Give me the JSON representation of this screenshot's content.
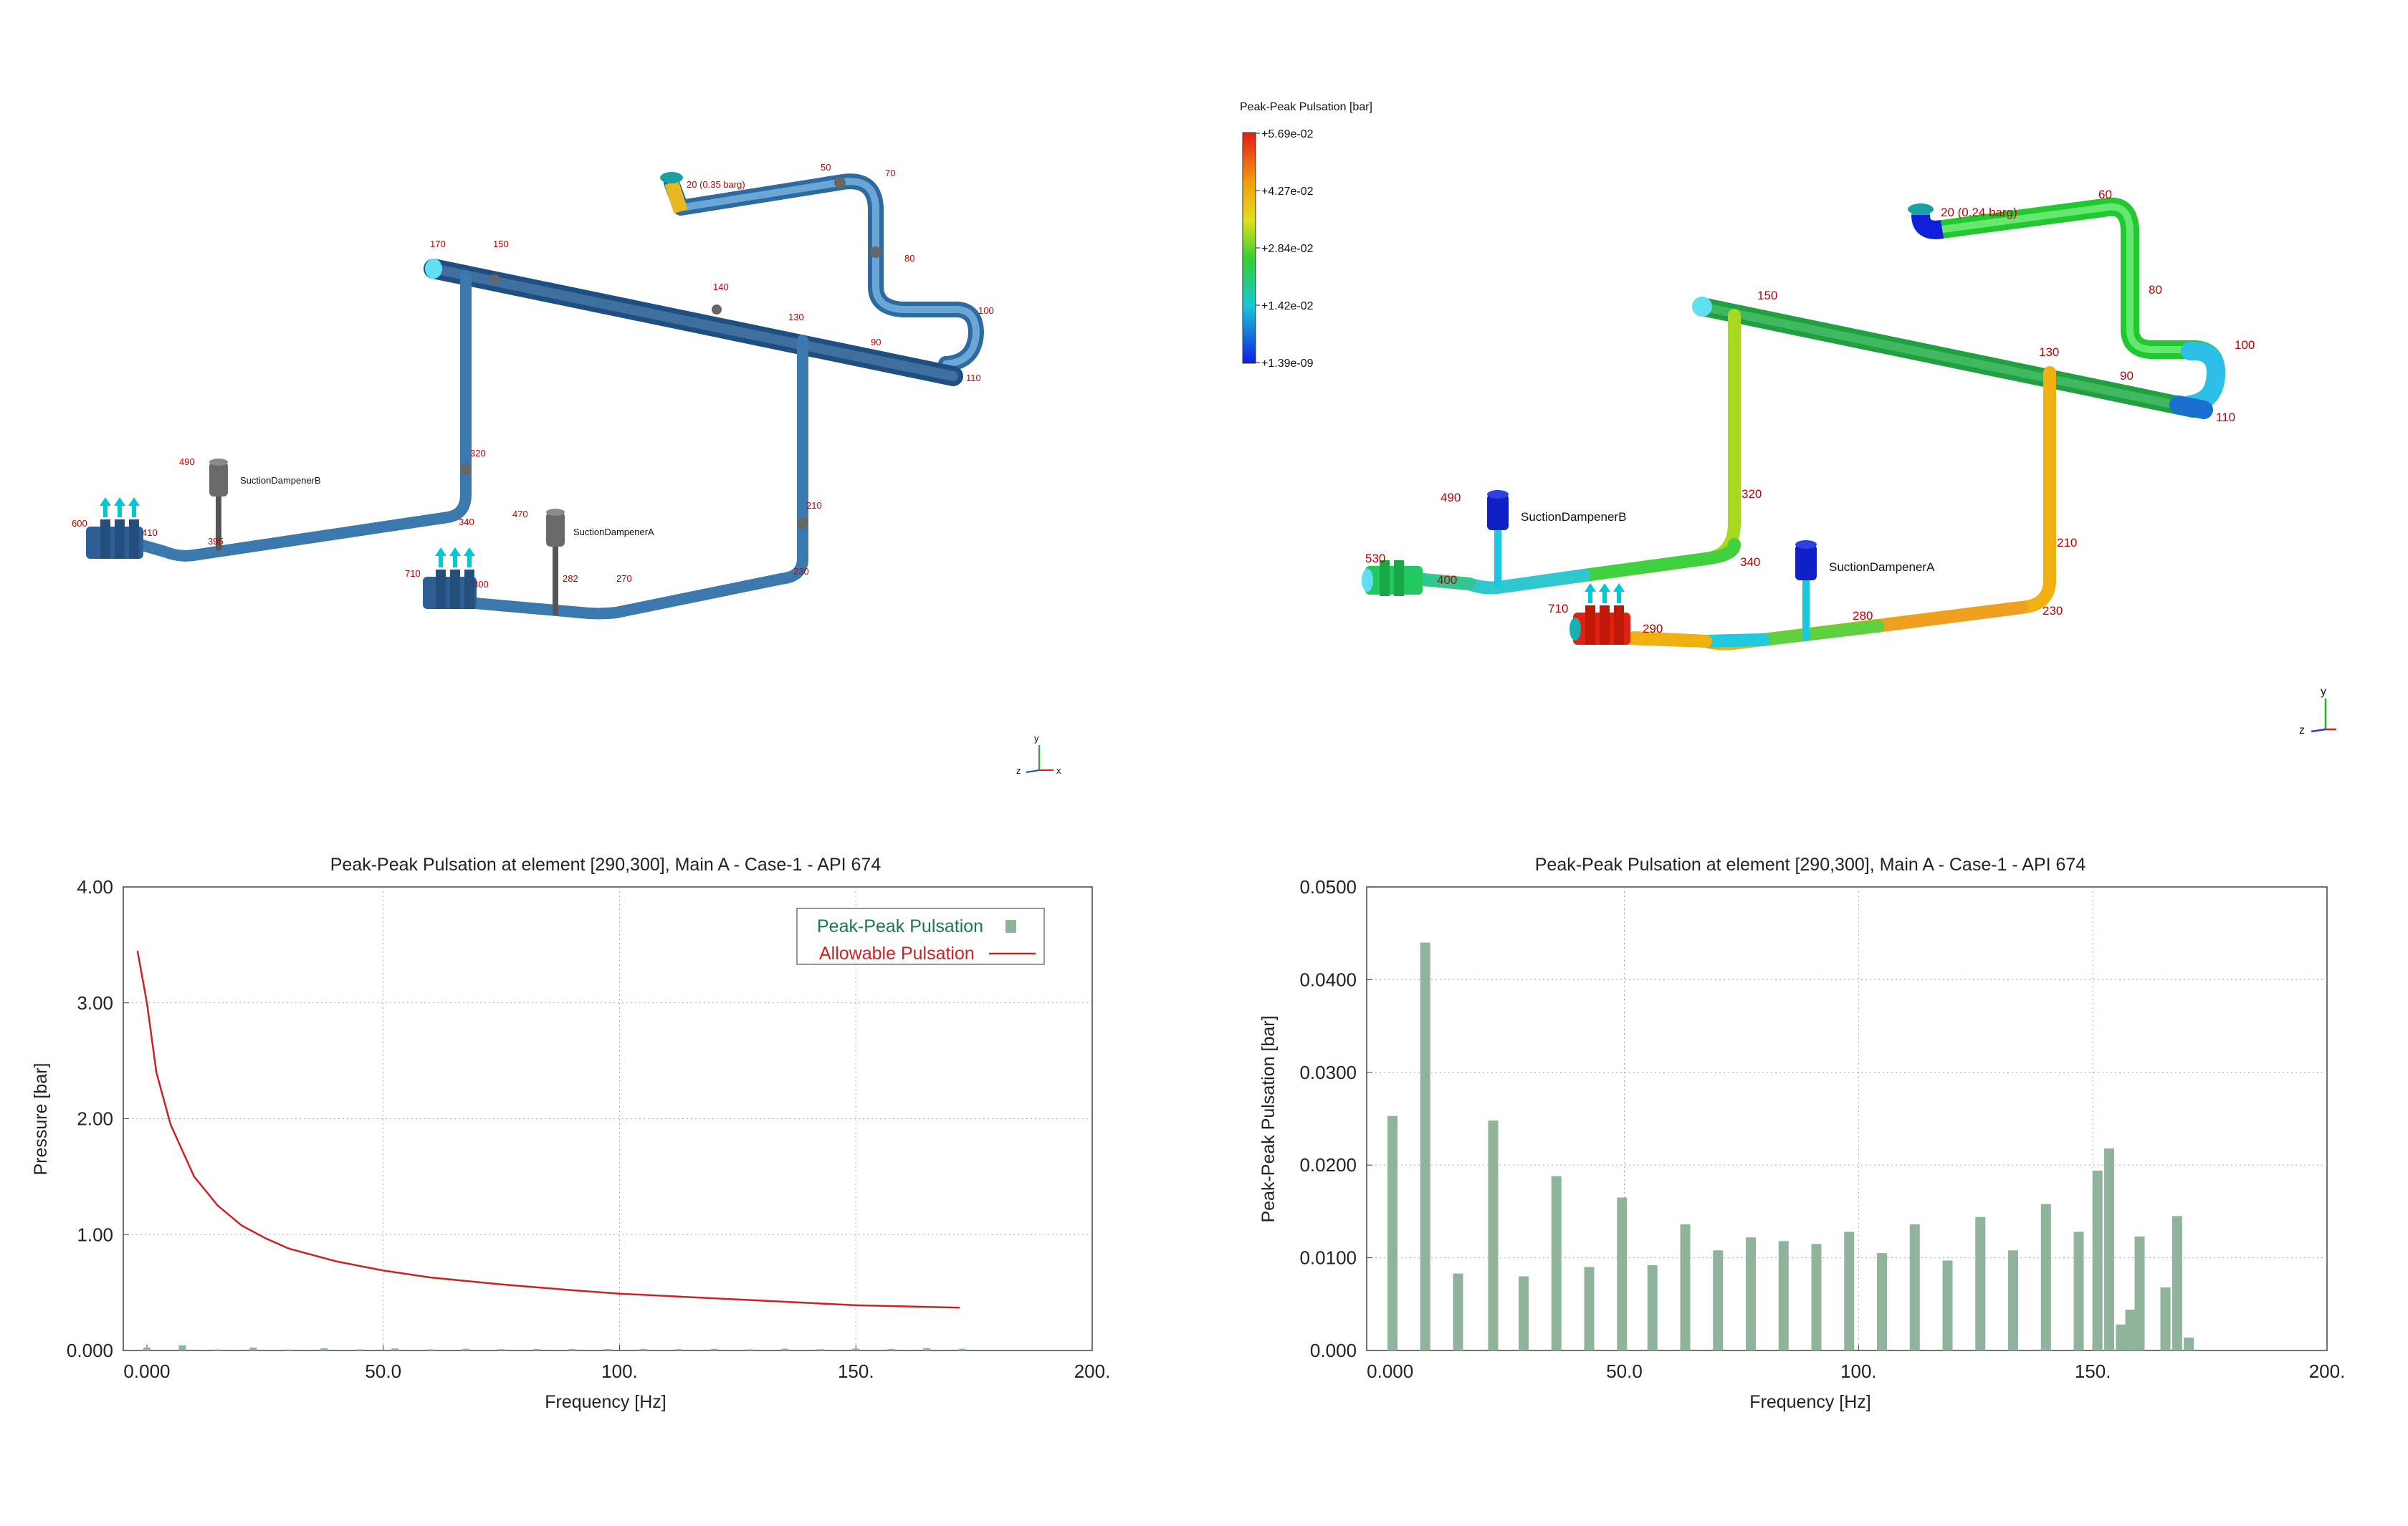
{
  "model_view_left": {
    "labels": [
      "20 (0.35 barg)",
      "50",
      "70",
      "80",
      "100",
      "110",
      "90",
      "130",
      "140",
      "150",
      "170",
      "320",
      "340",
      "210",
      "230",
      "270",
      "282",
      "300",
      "710",
      "470",
      "490",
      "395",
      "410",
      "600"
    ],
    "dampener_b": "SuctionDampenerB",
    "dampener_a": "SuctionDampenerA",
    "axes": {
      "x": "x",
      "y": "y",
      "z": "z"
    }
  },
  "model_view_right": {
    "labels": [
      "20 (0.24 barg)",
      "60",
      "80",
      "100",
      "110",
      "90",
      "130",
      "150",
      "320",
      "340",
      "210",
      "230",
      "280",
      "290",
      "710",
      "490",
      "400",
      "530"
    ],
    "dampener_b": "SuctionDampenerB",
    "dampener_a": "SuctionDampenerA",
    "axes": {
      "x": "x",
      "y": "y",
      "z": "z"
    }
  },
  "colorbar": {
    "title": "Peak-Peak Pulsation [bar]",
    "ticks": [
      "+5.69e-02",
      "+4.27e-02",
      "+2.84e-02",
      "+1.42e-02",
      "+1.39e-09"
    ],
    "colors": [
      "#e8201a",
      "#f0c020",
      "#30d030",
      "#20c0e0",
      "#1020e0"
    ]
  },
  "chart_data": [
    {
      "type": "line",
      "title": "Peak-Peak Pulsation at element [290,300], Main A - Case-1 - API 674",
      "xlabel": "Frequency [Hz]",
      "ylabel": "Pressure [bar]",
      "xlim": [
        -5,
        200
      ],
      "ylim": [
        0,
        4.0
      ],
      "x_ticks": [
        "0.000",
        "50.0",
        "100.",
        "150.",
        "200."
      ],
      "y_ticks": [
        "0.000",
        "1.00",
        "2.00",
        "3.00",
        "4.00"
      ],
      "grid": true,
      "legend_position": "top-right",
      "series": [
        {
          "name": "Peak-Peak Pulsation",
          "kind": "bar",
          "color": "#8fb49b",
          "x": [
            0,
            7.5,
            15,
            22.5,
            30,
            37.5,
            45,
            52.5,
            60,
            67.5,
            75,
            82.5,
            90,
            97.5,
            105,
            112.5,
            120,
            127.5,
            135,
            142.5,
            150,
            157.5,
            165,
            172.5
          ],
          "values": [
            0.025,
            0.044,
            0.008,
            0.025,
            0.008,
            0.019,
            0.009,
            0.017,
            0.009,
            0.014,
            0.011,
            0.012,
            0.012,
            0.012,
            0.013,
            0.011,
            0.014,
            0.01,
            0.015,
            0.011,
            0.016,
            0.013,
            0.02,
            0.015
          ]
        },
        {
          "name": "Allowable Pulsation",
          "kind": "line",
          "color": "#cc2222",
          "x": [
            -2,
            0,
            2,
            5,
            10,
            15,
            20,
            25,
            30,
            40,
            50,
            60,
            75,
            90,
            100,
            125,
            150,
            172
          ],
          "values": [
            3.45,
            3.0,
            2.4,
            1.95,
            1.5,
            1.25,
            1.08,
            0.97,
            0.88,
            0.77,
            0.69,
            0.63,
            0.57,
            0.52,
            0.49,
            0.44,
            0.39,
            0.37
          ]
        }
      ]
    },
    {
      "type": "bar",
      "title": "Peak-Peak Pulsation at element [290,300], Main A - Case-1 - API 674",
      "xlabel": "Frequency [Hz]",
      "ylabel": "Peak-Peak Pulsation [bar]",
      "xlim": [
        -5,
        200
      ],
      "ylim": [
        0,
        0.05
      ],
      "x_ticks": [
        "0.000",
        "50.0",
        "100.",
        "150.",
        "200."
      ],
      "y_ticks": [
        "0.000",
        "0.0100",
        "0.0200",
        "0.0300",
        "0.0400",
        "0.0500"
      ],
      "grid": true,
      "color": "#8fb49b",
      "x": [
        0.5,
        7.5,
        14.5,
        22,
        28.5,
        35.5,
        42.5,
        49.5,
        56,
        63,
        70,
        77,
        84,
        91,
        98,
        105,
        112,
        119,
        126,
        133,
        140,
        147,
        151,
        153.5,
        156,
        158,
        160,
        165.5,
        168,
        170.5
      ],
      "values": [
        0.0253,
        0.044,
        0.0083,
        0.0248,
        0.008,
        0.0188,
        0.009,
        0.0165,
        0.0092,
        0.0136,
        0.0108,
        0.0122,
        0.0118,
        0.0115,
        0.0128,
        0.0105,
        0.0136,
        0.0097,
        0.0144,
        0.0108,
        0.0158,
        0.0128,
        0.0194,
        0.0218,
        0.0028,
        0.0044,
        0.0123,
        0.0068,
        0.0145,
        0.0014
      ]
    }
  ]
}
